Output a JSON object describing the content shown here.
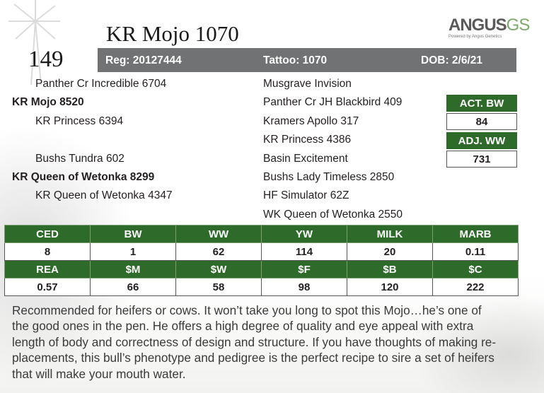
{
  "lot_number": "149",
  "animal_name": "KR Mojo 1070",
  "logo": {
    "brand_main": "ANGUS",
    "brand_accent": "GS",
    "tagline": "Powered by Angus Genetics"
  },
  "info_bar": {
    "registration": "Reg: 20127444",
    "tattoo": "Tattoo: 1070",
    "dob": "DOB: 2/6/21"
  },
  "pedigree": {
    "sire_side": {
      "sire_sire": "Panther Cr Incredible 6704",
      "sire": "KR Mojo 8520",
      "sire_dam": "KR Princess 6394"
    },
    "dam_side": {
      "dam_sire": "Bushs Tundra 602",
      "dam": "KR Queen of Wetonka 8299",
      "dam_dam": "KR Queen of Wetonka 4347"
    },
    "ancestors": [
      "Musgrave Invision",
      "Panther Cr JH Blackbird 409",
      "Kramers Apollo 317",
      "KR Princess 4386",
      "Basin Excitement",
      "Bushs Lady Timeless 2850",
      "HF Simulator 62Z",
      "WK Queen of Wetonka 2550"
    ]
  },
  "weights": {
    "act_bw_label": "ACT. BW",
    "act_bw_value": "84",
    "adj_ww_label": "ADJ. WW",
    "adj_ww_value": "731"
  },
  "epd_table": {
    "row1_headers": [
      "CED",
      "BW",
      "WW",
      "YW",
      "MILK",
      "MARB"
    ],
    "row1_values": [
      "8",
      "1",
      "62",
      "114",
      "20",
      "0.11"
    ],
    "row2_headers": [
      "REA",
      "$M",
      "$W",
      "$F",
      "$B",
      "$C"
    ],
    "row2_values": [
      "0.57",
      "66",
      "58",
      "98",
      "120",
      "222"
    ]
  },
  "description_lines": [
    "Recommended for heifers or cows. It won’t take you long to spot this Mojo…he’s one of",
    "the good ones in the pen. He offers a high degree of quality and eye appeal with extra",
    "length of body and correctness of design and structure. If you have thoughts of making re-",
    "placements, this bull’s phenotype and pedigree is the perfect recipe to sire a set of heifers",
    "that will make your mouth water."
  ],
  "colors": {
    "green": "#2e6b2a",
    "bar_gray": "#717273"
  }
}
